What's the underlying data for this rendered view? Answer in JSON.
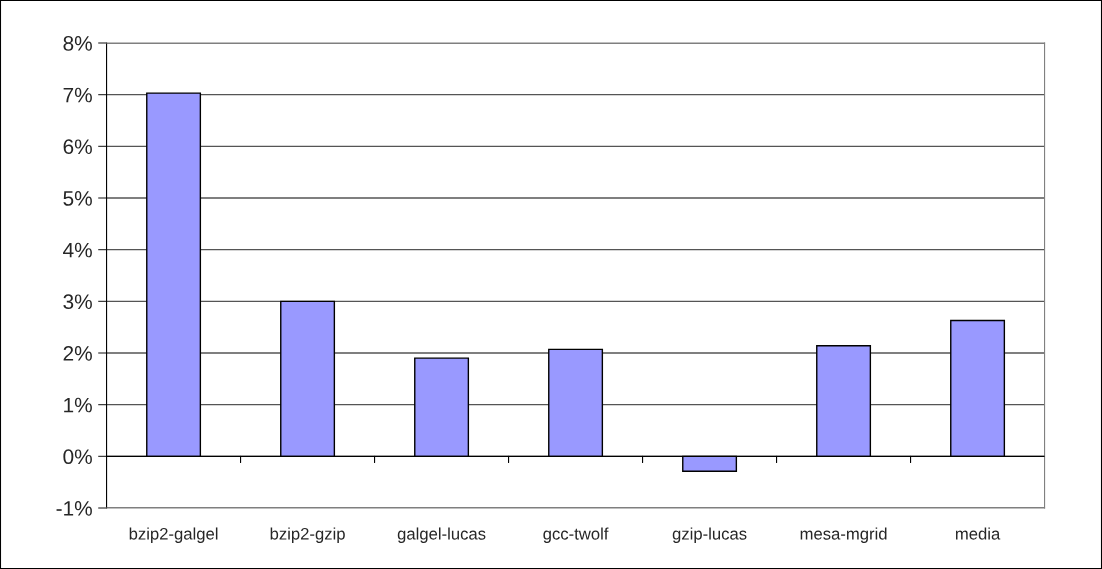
{
  "chart_data": {
    "type": "bar",
    "categories": [
      "bzip2-galgel",
      "bzip2-gzip",
      "galgel-lucas",
      "gcc-twolf",
      "gzip-lucas",
      "mesa-mgrid",
      "media"
    ],
    "values": [
      7.03,
      3.0,
      1.9,
      2.07,
      -0.29,
      2.14,
      2.63
    ],
    "color": "#9999ff",
    "ylim": [
      -1,
      8
    ],
    "yticks": [
      {
        "value": -1,
        "label": "-1%"
      },
      {
        "value": 0,
        "label": "0%"
      },
      {
        "value": 1,
        "label": "1%"
      },
      {
        "value": 2,
        "label": "2%"
      },
      {
        "value": 3,
        "label": "3%"
      },
      {
        "value": 4,
        "label": "4%"
      },
      {
        "value": 5,
        "label": "5%"
      },
      {
        "value": 6,
        "label": "6%"
      },
      {
        "value": 7,
        "label": "7%"
      },
      {
        "value": 8,
        "label": "8%"
      }
    ],
    "grid": "y",
    "legend": false
  }
}
